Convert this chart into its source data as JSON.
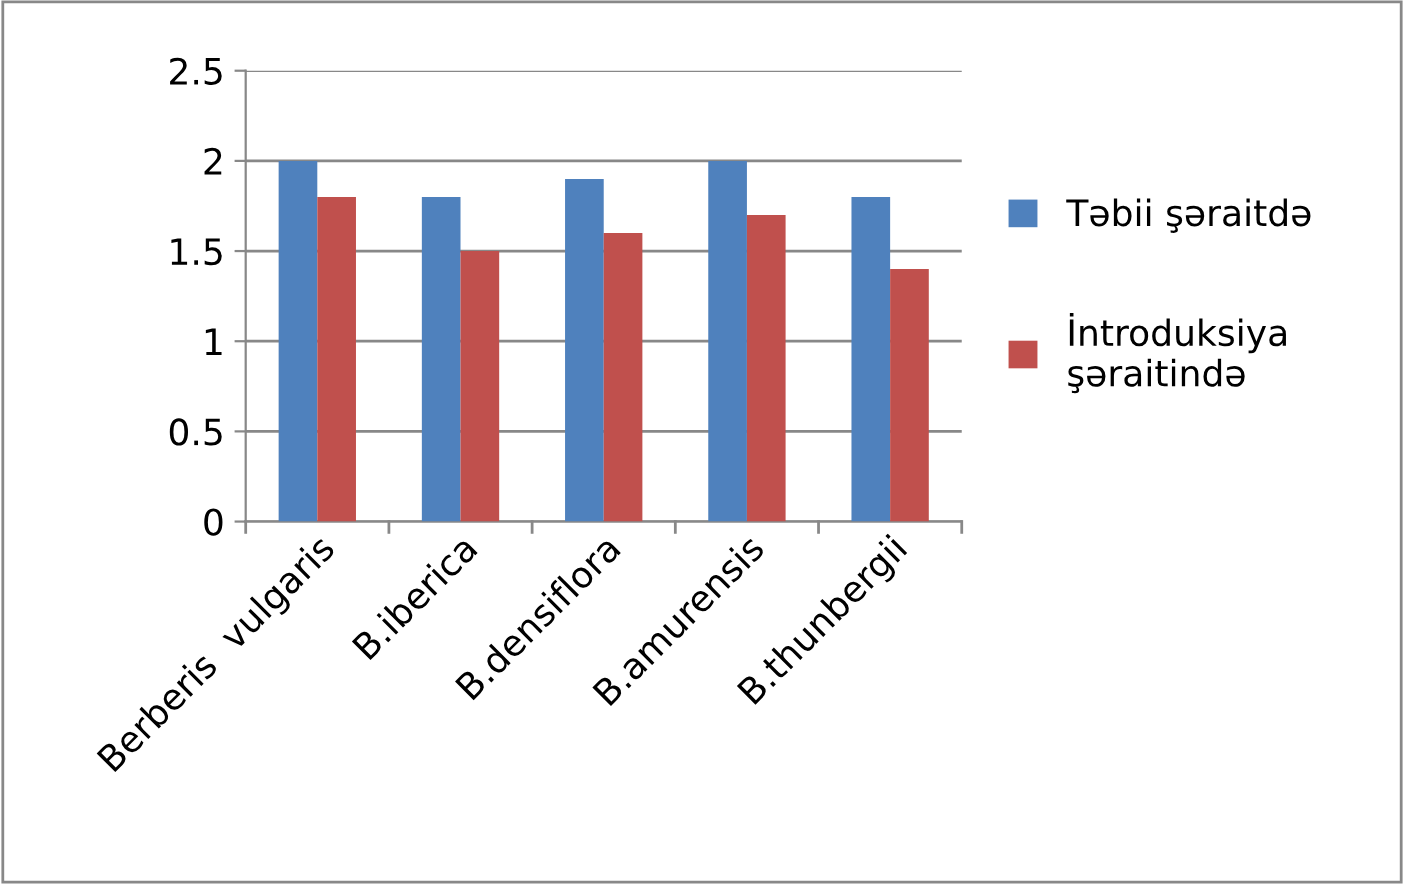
{
  "chart_data": {
    "type": "bar",
    "categories": [
      "Berberis  vulgaris",
      "B.iberica",
      "B.densiflora",
      "B.amurensis",
      "B.thunbergii"
    ],
    "series": [
      {
        "name": "Təbii şəraitdə",
        "color": "#4f81bd",
        "values": [
          2,
          1.8,
          1.9,
          2,
          1.8
        ]
      },
      {
        "name": "İntroduksiya\nşəraitində",
        "color": "#c0504d",
        "values": [
          1.8,
          1.5,
          1.6,
          1.7,
          1.4
        ]
      }
    ],
    "ylim": [
      0,
      2.5
    ],
    "yticks": [
      0,
      0.5,
      1,
      1.5,
      2,
      2.5
    ],
    "grid": "y",
    "legend": "right"
  }
}
